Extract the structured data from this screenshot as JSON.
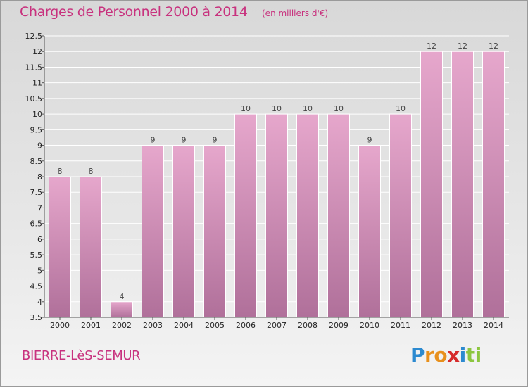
{
  "header": {
    "title": "Charges de Personnel 2000 à 2014",
    "subtitle": "(en milliers d'€)"
  },
  "footer": {
    "commune": "BIERRE-LèS-SEMUR",
    "logo_letters": [
      "P",
      "r",
      "o",
      "x",
      "i",
      "t",
      "i"
    ],
    "logo_colors": [
      "#2c8ad0",
      "#e8901c",
      "#e8901c",
      "#d62b2b",
      "#2c8ad0",
      "#8cc63f",
      "#8cc63f"
    ]
  },
  "colors": {
    "title": "#c8327e",
    "bar_top": "#e6a7cc",
    "bar_bottom": "#b0709a"
  },
  "chart_data": {
    "type": "bar",
    "title": "Charges de Personnel 2000 à 2014",
    "subtitle": "(en milliers d'€)",
    "categories": [
      "2000",
      "2001",
      "2002",
      "2003",
      "2004",
      "2005",
      "2006",
      "2007",
      "2008",
      "2009",
      "2010",
      "2011",
      "2012",
      "2013",
      "2014"
    ],
    "values": [
      8,
      8,
      4,
      9,
      9,
      9,
      10,
      10,
      10,
      10,
      9,
      10,
      12,
      12,
      12
    ],
    "ylim": [
      3.5,
      12.5
    ],
    "yticks": [
      "3.5",
      "4",
      "4.5",
      "5",
      "5.5",
      "6",
      "6.5",
      "7",
      "7.5",
      "8",
      "8.5",
      "9",
      "9.5",
      "10",
      "10.5",
      "11",
      "11.5",
      "12",
      "12.5"
    ],
    "grid": true,
    "xlabel": "",
    "ylabel": ""
  }
}
